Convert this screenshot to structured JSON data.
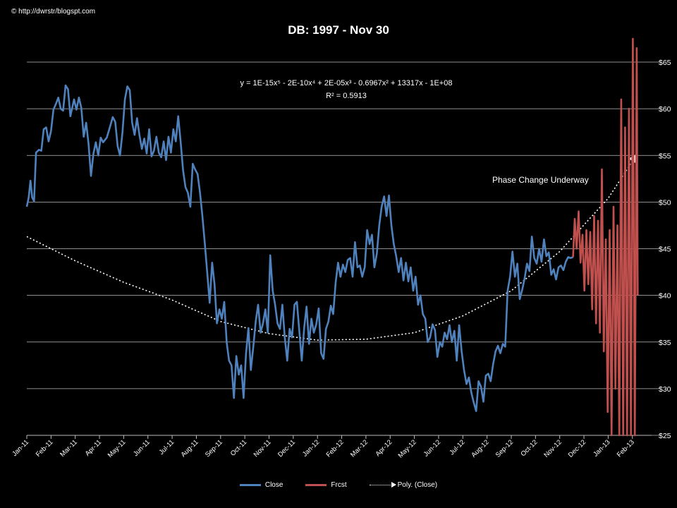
{
  "header": {
    "copyright": "© http://dwrstr/blogspt.com",
    "title": "DB: 1997 - Nov 30"
  },
  "annotations": {
    "equation": "y = 1E-15x⁵ - 2E-10x⁴ + 2E-05x³ - 0.6967x² + 13317x - 1E+08",
    "r_squared": "R² = 0.5913",
    "phase_note": "Phase Change Underway"
  },
  "legend": {
    "close": "Close",
    "frcst": "Frcst",
    "poly": "Poly. (Close)"
  },
  "colors": {
    "close": "#4F81BD",
    "frcst": "#C0504D",
    "poly": "#ffffff",
    "grid": "#bdbdbd",
    "background": "#000000"
  },
  "chart_data": {
    "type": "line",
    "title": "DB: 1997 - Nov 30",
    "xlabel": "",
    "ylabel": "",
    "ylim": [
      25,
      65
    ],
    "yticks": [
      "$25",
      "$30",
      "$35",
      "$40",
      "$45",
      "$50",
      "$55",
      "$60",
      "$65"
    ],
    "ytick_values": [
      25,
      30,
      35,
      40,
      45,
      50,
      55,
      60,
      65
    ],
    "x_categories": [
      "Jan-11",
      "Feb-11",
      "Mar-11",
      "Apr-11",
      "May-11",
      "Jun-11",
      "Jul-11",
      "Aug-11",
      "Sep-11",
      "Oct-11",
      "Nov-11",
      "Dec-11",
      "Jan-12",
      "Feb-12",
      "Mar-12",
      "Apr-12",
      "May-12",
      "Jun-12",
      "Jul-12",
      "Aug-12",
      "Sep-12",
      "Oct-12",
      "Nov-12",
      "Dec-12",
      "Jan-13",
      "Feb-13"
    ],
    "x_unit": "month index (0 = Jan-11)",
    "grid": true,
    "legend_position": "bottom",
    "series": [
      {
        "name": "Close",
        "points": [
          [
            0,
            49.5
          ],
          [
            0.08,
            50.5
          ],
          [
            0.15,
            52.3
          ],
          [
            0.22,
            50.5
          ],
          [
            0.3,
            50.1
          ],
          [
            0.38,
            55.3
          ],
          [
            0.5,
            55.6
          ],
          [
            0.6,
            55.5
          ],
          [
            0.7,
            57.8
          ],
          [
            0.8,
            58.0
          ],
          [
            0.9,
            56.5
          ],
          [
            1.0,
            57.6
          ],
          [
            1.1,
            59.9
          ],
          [
            1.2,
            60.5
          ],
          [
            1.3,
            61.2
          ],
          [
            1.4,
            60.0
          ],
          [
            1.5,
            59.8
          ],
          [
            1.6,
            62.5
          ],
          [
            1.7,
            62.1
          ],
          [
            1.8,
            59.2
          ],
          [
            1.95,
            61.0
          ],
          [
            2.05,
            59.9
          ],
          [
            2.15,
            61.2
          ],
          [
            2.25,
            60.1
          ],
          [
            2.35,
            57.0
          ],
          [
            2.45,
            58.5
          ],
          [
            2.55,
            56.2
          ],
          [
            2.65,
            52.8
          ],
          [
            2.75,
            55.2
          ],
          [
            2.85,
            56.4
          ],
          [
            2.95,
            55.0
          ],
          [
            3.05,
            56.9
          ],
          [
            3.15,
            56.4
          ],
          [
            3.3,
            56.9
          ],
          [
            3.45,
            58.2
          ],
          [
            3.55,
            59.1
          ],
          [
            3.65,
            58.6
          ],
          [
            3.75,
            56.0
          ],
          [
            3.85,
            55.0
          ],
          [
            3.95,
            57.5
          ],
          [
            4.05,
            61.0
          ],
          [
            4.15,
            62.4
          ],
          [
            4.25,
            62.0
          ],
          [
            4.35,
            58.5
          ],
          [
            4.45,
            57.2
          ],
          [
            4.55,
            59.0
          ],
          [
            4.65,
            57.2
          ],
          [
            4.75,
            55.7
          ],
          [
            4.85,
            56.8
          ],
          [
            4.95,
            55.2
          ],
          [
            5.05,
            57.8
          ],
          [
            5.15,
            54.9
          ],
          [
            5.25,
            55.5
          ],
          [
            5.35,
            57.0
          ],
          [
            5.45,
            55.3
          ],
          [
            5.55,
            54.8
          ],
          [
            5.65,
            56.5
          ],
          [
            5.75,
            54.5
          ],
          [
            5.85,
            57.0
          ],
          [
            5.95,
            55.3
          ],
          [
            6.05,
            57.8
          ],
          [
            6.15,
            56.5
          ],
          [
            6.25,
            59.2
          ],
          [
            6.35,
            56.5
          ],
          [
            6.45,
            53.4
          ],
          [
            6.55,
            51.6
          ],
          [
            6.65,
            51.0
          ],
          [
            6.75,
            49.5
          ],
          [
            6.85,
            54.1
          ],
          [
            6.95,
            53.5
          ],
          [
            7.05,
            53.0
          ],
          [
            7.15,
            51.0
          ],
          [
            7.25,
            48.5
          ],
          [
            7.35,
            45.5
          ],
          [
            7.45,
            42.4
          ],
          [
            7.55,
            39.2
          ],
          [
            7.65,
            43.5
          ],
          [
            7.75,
            41.2
          ],
          [
            7.85,
            37.0
          ],
          [
            7.95,
            38.5
          ],
          [
            8.05,
            37.5
          ],
          [
            8.15,
            39.3
          ],
          [
            8.25,
            35.0
          ],
          [
            8.35,
            33.0
          ],
          [
            8.45,
            32.5
          ],
          [
            8.55,
            29.0
          ],
          [
            8.65,
            33.5
          ],
          [
            8.75,
            31.5
          ],
          [
            8.85,
            32.5
          ],
          [
            8.95,
            29.0
          ],
          [
            9.05,
            33.8
          ],
          [
            9.15,
            36.5
          ],
          [
            9.25,
            32.0
          ],
          [
            9.35,
            34.5
          ],
          [
            9.45,
            37.2
          ],
          [
            9.55,
            39.0
          ],
          [
            9.65,
            36.0
          ],
          [
            9.75,
            37.0
          ],
          [
            9.85,
            38.5
          ],
          [
            9.95,
            36.0
          ],
          [
            10.05,
            44.3
          ],
          [
            10.15,
            40.5
          ],
          [
            10.25,
            39.0
          ],
          [
            10.35,
            37.0
          ],
          [
            10.45,
            36.4
          ],
          [
            10.55,
            39.0
          ],
          [
            10.65,
            35.5
          ],
          [
            10.75,
            33.0
          ],
          [
            10.85,
            36.4
          ],
          [
            10.95,
            35.5
          ],
          [
            11.05,
            39.0
          ],
          [
            11.15,
            39.3
          ],
          [
            11.25,
            36.2
          ],
          [
            11.35,
            33.0
          ],
          [
            11.45,
            36.5
          ],
          [
            11.55,
            38.8
          ],
          [
            11.65,
            34.8
          ],
          [
            11.75,
            37.5
          ],
          [
            11.85,
            36.0
          ],
          [
            11.95,
            36.9
          ],
          [
            12.05,
            38.6
          ],
          [
            12.15,
            33.8
          ],
          [
            12.25,
            33.2
          ],
          [
            12.35,
            36.4
          ],
          [
            12.45,
            37.2
          ],
          [
            12.55,
            38.9
          ],
          [
            12.65,
            38.0
          ],
          [
            12.75,
            41.4
          ],
          [
            12.85,
            43.5
          ],
          [
            12.95,
            42.0
          ],
          [
            13.05,
            43.3
          ],
          [
            13.15,
            42.5
          ],
          [
            13.25,
            43.8
          ],
          [
            13.35,
            44.0
          ],
          [
            13.45,
            42.0
          ],
          [
            13.55,
            45.7
          ],
          [
            13.65,
            43.0
          ],
          [
            13.75,
            43.2
          ],
          [
            13.85,
            42.0
          ],
          [
            13.95,
            43.0
          ],
          [
            14.05,
            47.0
          ],
          [
            14.15,
            45.5
          ],
          [
            14.25,
            46.5
          ],
          [
            14.35,
            43.0
          ],
          [
            14.45,
            44.5
          ],
          [
            14.55,
            47.5
          ],
          [
            14.65,
            49.5
          ],
          [
            14.75,
            50.6
          ],
          [
            14.85,
            48.5
          ],
          [
            14.95,
            50.7
          ],
          [
            15.05,
            47.5
          ],
          [
            15.15,
            45.5
          ],
          [
            15.25,
            44.2
          ],
          [
            15.35,
            42.5
          ],
          [
            15.45,
            44.0
          ],
          [
            15.55,
            41.6
          ],
          [
            15.65,
            43.5
          ],
          [
            15.75,
            41.5
          ],
          [
            15.85,
            43.0
          ],
          [
            15.95,
            40.5
          ],
          [
            16.05,
            42.0
          ],
          [
            16.15,
            39.0
          ],
          [
            16.25,
            40.0
          ],
          [
            16.35,
            38.0
          ],
          [
            16.45,
            37.5
          ],
          [
            16.55,
            35.0
          ],
          [
            16.65,
            35.5
          ],
          [
            16.75,
            36.9
          ],
          [
            16.85,
            36.3
          ],
          [
            16.95,
            33.4
          ],
          [
            17.05,
            35.0
          ],
          [
            17.15,
            34.5
          ],
          [
            17.25,
            36.0
          ],
          [
            17.35,
            35.3
          ],
          [
            17.45,
            36.8
          ],
          [
            17.55,
            35.0
          ],
          [
            17.65,
            36.2
          ],
          [
            17.75,
            33.0
          ],
          [
            17.85,
            36.8
          ],
          [
            17.95,
            34.0
          ],
          [
            18.05,
            32.0
          ],
          [
            18.15,
            30.5
          ],
          [
            18.25,
            31.2
          ],
          [
            18.35,
            29.6
          ],
          [
            18.45,
            28.5
          ],
          [
            18.55,
            27.6
          ],
          [
            18.65,
            30.8
          ],
          [
            18.75,
            30.2
          ],
          [
            18.85,
            28.6
          ],
          [
            18.95,
            31.4
          ],
          [
            19.05,
            31.6
          ],
          [
            19.15,
            30.8
          ],
          [
            19.25,
            32.6
          ],
          [
            19.35,
            34.0
          ],
          [
            19.45,
            34.6
          ],
          [
            19.55,
            33.8
          ],
          [
            19.65,
            34.8
          ],
          [
            19.75,
            34.5
          ],
          [
            19.85,
            40.5
          ],
          [
            19.95,
            42.0
          ],
          [
            20.05,
            44.7
          ],
          [
            20.15,
            42.0
          ],
          [
            20.25,
            43.4
          ],
          [
            20.35,
            39.6
          ],
          [
            20.45,
            40.6
          ],
          [
            20.55,
            41.8
          ],
          [
            20.65,
            43.4
          ],
          [
            20.75,
            42.6
          ],
          [
            20.85,
            46.3
          ],
          [
            20.95,
            44.0
          ],
          [
            21.05,
            43.4
          ],
          [
            21.15,
            45.0
          ],
          [
            21.25,
            43.6
          ],
          [
            21.35,
            46.0
          ],
          [
            21.45,
            44.2
          ],
          [
            21.55,
            44.6
          ],
          [
            21.65,
            42.2
          ],
          [
            21.75,
            42.8
          ],
          [
            21.85,
            41.7
          ],
          [
            21.95,
            43.0
          ],
          [
            22.05,
            43.2
          ],
          [
            22.15,
            42.7
          ],
          [
            22.25,
            43.6
          ],
          [
            22.35,
            44.1
          ],
          [
            22.45,
            44.0
          ],
          [
            22.55,
            44.1
          ]
        ]
      },
      {
        "name": "Frcst",
        "points": [
          [
            22.55,
            44.1
          ],
          [
            22.62,
            48.2
          ],
          [
            22.7,
            45.0
          ],
          [
            22.78,
            49.0
          ],
          [
            22.86,
            43.5
          ],
          [
            22.94,
            46.5
          ],
          [
            23.02,
            40.5
          ],
          [
            23.1,
            47.0
          ],
          [
            23.18,
            41.2
          ],
          [
            23.26,
            46.8
          ],
          [
            23.34,
            38.5
          ],
          [
            23.42,
            48.5
          ],
          [
            23.5,
            37.0
          ],
          [
            23.58,
            48.0
          ],
          [
            23.66,
            36.0
          ],
          [
            23.74,
            53.5
          ],
          [
            23.82,
            34.0
          ],
          [
            23.9,
            46.0
          ],
          [
            23.98,
            27.5
          ],
          [
            24.06,
            47.0
          ],
          [
            24.14,
            25.0
          ],
          [
            24.22,
            49.5
          ],
          [
            24.3,
            30.0
          ],
          [
            24.38,
            47.5
          ],
          [
            24.46,
            25.0
          ],
          [
            24.54,
            61.0
          ],
          [
            24.62,
            25.0
          ],
          [
            24.7,
            58.0
          ],
          [
            24.78,
            25.0
          ],
          [
            24.86,
            60.0
          ],
          [
            24.94,
            25.0
          ],
          [
            25.02,
            67.5
          ],
          [
            25.1,
            25.0
          ],
          [
            25.18,
            66.5
          ],
          [
            25.22,
            40.0
          ]
        ]
      },
      {
        "name": "Poly. (Close)",
        "trend": true,
        "points": [
          [
            0,
            46.3
          ],
          [
            2,
            43.7
          ],
          [
            4,
            41.4
          ],
          [
            6,
            39.5
          ],
          [
            8,
            37.2
          ],
          [
            10,
            35.9
          ],
          [
            12,
            35.2
          ],
          [
            14,
            35.3
          ],
          [
            16,
            36.0
          ],
          [
            18,
            37.8
          ],
          [
            20,
            40.5
          ],
          [
            22,
            44.7
          ],
          [
            24,
            50.4
          ],
          [
            25.15,
            55.0
          ]
        ]
      }
    ]
  }
}
